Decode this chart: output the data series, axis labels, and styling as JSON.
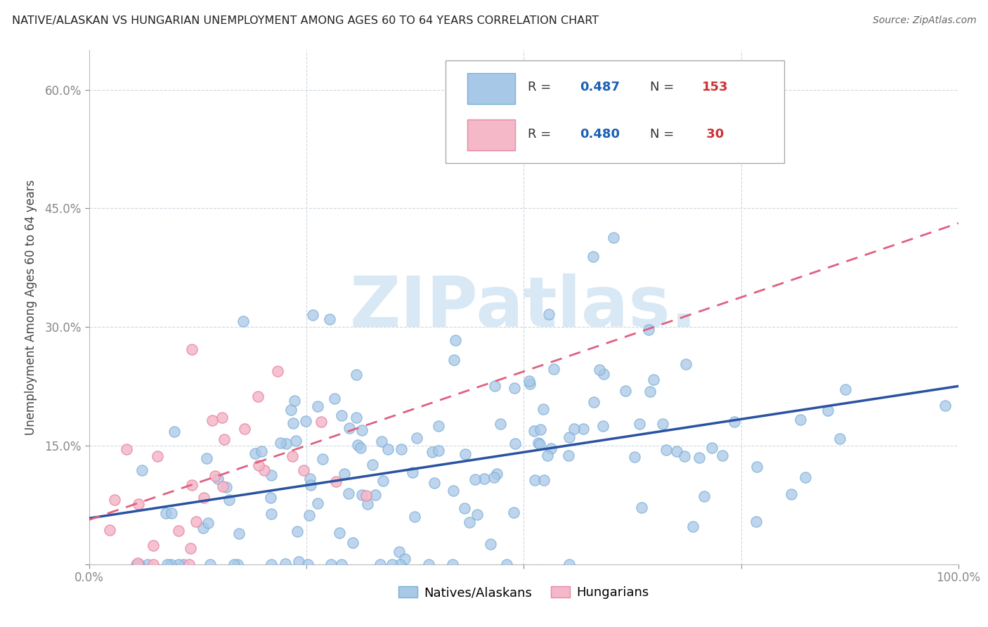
{
  "title": "NATIVE/ALASKAN VS HUNGARIAN UNEMPLOYMENT AMONG AGES 60 TO 64 YEARS CORRELATION CHART",
  "source": "Source: ZipAtlas.com",
  "ylabel": "Unemployment Among Ages 60 to 64 years",
  "xlim": [
    0,
    1.0
  ],
  "ylim": [
    0,
    0.65
  ],
  "xticks": [
    0.0,
    0.25,
    0.5,
    0.75,
    1.0
  ],
  "xticklabels": [
    "0.0%",
    "",
    "",
    "",
    "100.0%"
  ],
  "yticks": [
    0.0,
    0.15,
    0.3,
    0.45,
    0.6
  ],
  "yticklabels": [
    "",
    "15.0%",
    "30.0%",
    "45.0%",
    "60.0%"
  ],
  "native_color": "#a8c8e8",
  "native_edge_color": "#7aafd4",
  "hungarian_color": "#f4b8c8",
  "hungarian_edge_color": "#e888a8",
  "native_line_color": "#2a52a0",
  "hungarian_line_color": "#e06080",
  "native_R": 0.487,
  "native_N": 153,
  "hungarian_R": 0.48,
  "hungarian_N": 30,
  "legend_R_color": "#1a5fb4",
  "legend_N_color": "#cc3333",
  "background_color": "#ffffff",
  "watermark_color": "#d8e8f4",
  "grid_color": "#d0d8e0"
}
